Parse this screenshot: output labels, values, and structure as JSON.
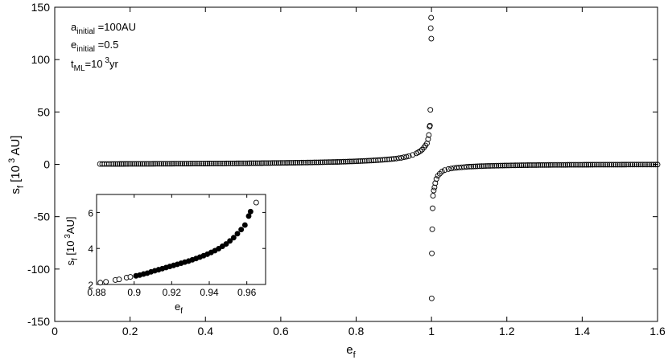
{
  "chart_data": [
    {
      "type": "scatter",
      "xlabel": {
        "main": "e",
        "sub": "f"
      },
      "ylabel": {
        "main": "s",
        "sub": "f",
        "unit_pre": " [10",
        "unit_sup": " 3",
        "unit_post": " AU]"
      },
      "xlim": [
        0,
        1.6
      ],
      "ylim": [
        -150,
        150
      ],
      "xticks": [
        "0",
        "0.2",
        "0.4",
        "0.6",
        "0.8",
        "1",
        "1.2",
        "1.4",
        "1.6"
      ],
      "yticks": [
        "-150",
        "-100",
        "-50",
        "0",
        "50",
        "100",
        "150"
      ],
      "annotations": [
        {
          "main": "a",
          "sub": "initial",
          "rest": " =100AU"
        },
        {
          "main": "e",
          "sub": "initial",
          "rest": " =0.5"
        },
        {
          "main": "t",
          "sub": "ML",
          "rest": "=10",
          "sup": " 3",
          "tail": "yr"
        }
      ],
      "marker": "open-circle",
      "series_note": "dense points along y≈0 from e_f≈0.11 to 1.6 with divergence at e_f=1",
      "x": [
        0.12,
        0.15,
        0.2,
        0.25,
        0.3,
        0.35,
        0.4,
        0.45,
        0.5,
        0.55,
        0.6,
        0.65,
        0.7,
        0.75,
        0.8,
        0.84,
        0.87,
        0.9,
        0.92,
        0.94,
        0.95,
        0.96,
        0.965,
        0.97,
        0.975,
        0.98,
        0.984,
        0.988,
        0.991,
        0.993,
        0.995,
        0.996,
        0.997,
        0.998,
        0.999,
        0.9995,
        1.0005,
        1.001,
        1.002,
        1.003,
        1.004,
        1.006,
        1.008,
        1.01,
        1.013,
        1.017,
        1.022,
        1.028,
        1.035,
        1.045,
        1.06,
        1.08,
        1.1,
        1.15,
        1.2,
        1.25,
        1.3,
        1.35,
        1.4,
        1.45,
        1.5,
        1.55,
        1.6
      ],
      "y": [
        0.3,
        0.35,
        0.4,
        0.45,
        0.55,
        0.65,
        0.75,
        0.85,
        1.0,
        1.15,
        1.35,
        1.6,
        1.9,
        2.3,
        2.9,
        3.6,
        4.3,
        5.2,
        6.2,
        7.8,
        9,
        10.5,
        11.5,
        12.5,
        14,
        16,
        18,
        20,
        24,
        28,
        36,
        37,
        52,
        130,
        140,
        120,
        -128,
        -85,
        -62,
        -42,
        -30,
        -25,
        -22,
        -18,
        -14,
        -11,
        -9,
        -7,
        -5.5,
        -4.5,
        -3.5,
        -2.8,
        -2.2,
        -1.5,
        -1.1,
        -0.8,
        -0.6,
        -0.5,
        -0.4,
        -0.35,
        -0.3,
        -0.25,
        -0.2
      ]
    },
    {
      "type": "scatter",
      "xlabel": {
        "main": "e",
        "sub": "f"
      },
      "ylabel": {
        "main": "s",
        "sub": "f",
        "unit_pre": " [10",
        "unit_sup": " 3",
        "unit_post": "AU]"
      },
      "xlim": [
        0.88,
        0.97
      ],
      "ylim": [
        2,
        7
      ],
      "xticks": [
        "0.88",
        "0.9",
        "0.92",
        "0.94",
        "0.96"
      ],
      "yticks": [
        "2",
        "4",
        "6"
      ],
      "open_x": [
        0.882,
        0.885,
        0.89,
        0.892,
        0.896,
        0.898,
        0.965
      ],
      "open_y": [
        2.1,
        2.15,
        2.25,
        2.28,
        2.38,
        2.42,
        6.55
      ],
      "filled_x": [
        0.901,
        0.903,
        0.905,
        0.907,
        0.909,
        0.911,
        0.913,
        0.915,
        0.917,
        0.919,
        0.921,
        0.923,
        0.925,
        0.927,
        0.929,
        0.931,
        0.933,
        0.935,
        0.937,
        0.939,
        0.941,
        0.943,
        0.945,
        0.947,
        0.949,
        0.951,
        0.953,
        0.955,
        0.957,
        0.959,
        0.961,
        0.962
      ],
      "filled_y": [
        2.48,
        2.52,
        2.58,
        2.63,
        2.7,
        2.76,
        2.82,
        2.88,
        2.94,
        3.0,
        3.06,
        3.12,
        3.18,
        3.24,
        3.3,
        3.37,
        3.44,
        3.52,
        3.6,
        3.68,
        3.78,
        3.88,
        3.99,
        4.12,
        4.25,
        4.42,
        4.6,
        4.82,
        5.05,
        5.3,
        5.8,
        6.05
      ]
    }
  ]
}
